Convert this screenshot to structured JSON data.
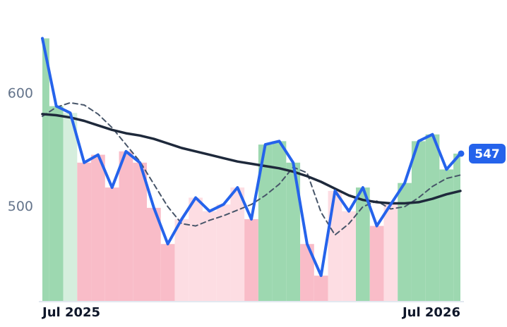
{
  "chart_data": {
    "type": "line",
    "categories": [
      "Jul 2025",
      null,
      null,
      null,
      null,
      null,
      null,
      null,
      null,
      null,
      null,
      null,
      null,
      null,
      null,
      null,
      null,
      null,
      null,
      null,
      null,
      null,
      null,
      null,
      null,
      null,
      null,
      null,
      null,
      null,
      "Jul 2026"
    ],
    "series": [
      {
        "color": "#2563eb",
        "style": "solid",
        "width": 4,
        "values": [
          649,
          589,
          583,
          539,
          546,
          517,
          549,
          539,
          499,
          467,
          489,
          508,
          496,
          502,
          517,
          489,
          555,
          558,
          539,
          467,
          439,
          514,
          496,
          517,
          483,
          502,
          521,
          558,
          564,
          533,
          547
        ]
      },
      {
        "color": "#1e293b",
        "style": "solid",
        "width": 3.5,
        "values": [
          582,
          581,
          579,
          576,
          572,
          568,
          565,
          563,
          560,
          556,
          552,
          549,
          546,
          543,
          540,
          538,
          536,
          534,
          531,
          527,
          522,
          516,
          510,
          506,
          504,
          503,
          503,
          504,
          507,
          511,
          514
        ]
      },
      {
        "color": "#475569",
        "style": "dashed",
        "width": 2,
        "values": [
          580,
          588,
          592,
          590,
          582,
          570,
          555,
          540,
          520,
          500,
          485,
          483,
          488,
          492,
          497,
          502,
          510,
          520,
          535,
          530,
          495,
          475,
          485,
          500,
          505,
          498,
          500,
          508,
          518,
          525,
          528
        ]
      }
    ],
    "shade_colors": [
      "#9dd8b0",
      "#d5eedd",
      "#fddde3",
      "#f9bcc8"
    ],
    "ylim": [
      416,
      658
    ],
    "yticks": [
      500,
      600
    ],
    "grid": false
  }
}
